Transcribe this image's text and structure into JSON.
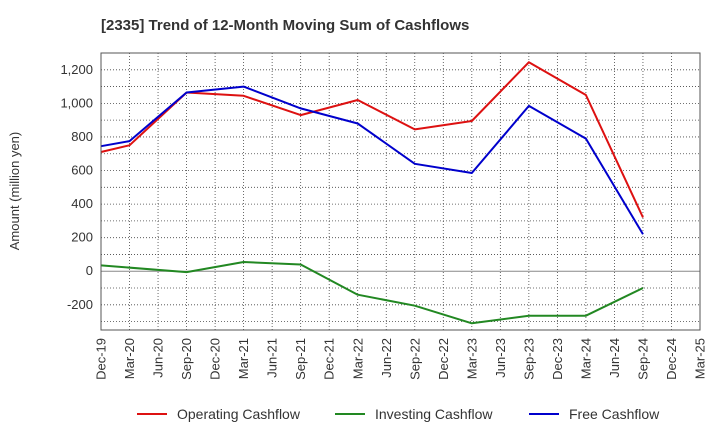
{
  "chart_data": {
    "type": "line",
    "title": "[2335]  Trend of 12-Month Moving Sum of Cashflows",
    "xlabel": "",
    "ylabel": "Amount (million yen)",
    "categories": [
      "Dec-19",
      "Mar-20",
      "Jun-20",
      "Sep-20",
      "Dec-20",
      "Mar-21",
      "Jun-21",
      "Sep-21",
      "Dec-21",
      "Mar-22",
      "Jun-22",
      "Sep-22",
      "Dec-22",
      "Mar-23",
      "Jun-23",
      "Sep-23",
      "Dec-23",
      "Mar-24",
      "Jun-24",
      "Sep-24",
      "Dec-24",
      "Mar-25"
    ],
    "ylim": [
      -350,
      1300
    ],
    "yticks": [
      -200,
      0,
      200,
      400,
      600,
      800,
      1000,
      1200
    ],
    "ytick_labels": [
      "-200",
      "0",
      "200",
      "400",
      "600",
      "800",
      "1,000",
      "1,200"
    ],
    "grid": true,
    "legend_position": "bottom",
    "series": [
      {
        "name": "Operating Cashflow",
        "color": "#dd1111",
        "values": [
          710,
          750,
          null,
          1065,
          null,
          1045,
          null,
          930,
          null,
          1020,
          null,
          845,
          null,
          895,
          null,
          1245,
          null,
          1050,
          null,
          320,
          null,
          null
        ]
      },
      {
        "name": "Investing Cashflow",
        "color": "#228822",
        "values": [
          35,
          null,
          null,
          -5,
          null,
          55,
          null,
          40,
          null,
          -140,
          null,
          -205,
          null,
          -310,
          null,
          -265,
          null,
          -265,
          null,
          -100,
          null,
          null
        ]
      },
      {
        "name": "Free Cashflow",
        "color": "#0000cc",
        "values": [
          745,
          775,
          null,
          1065,
          null,
          1100,
          null,
          970,
          null,
          880,
          null,
          640,
          null,
          585,
          null,
          985,
          null,
          790,
          null,
          220,
          null,
          null
        ]
      }
    ]
  }
}
